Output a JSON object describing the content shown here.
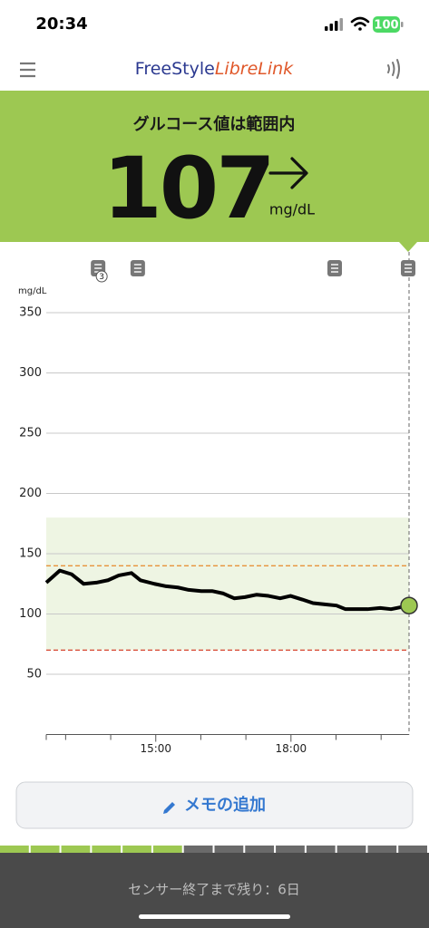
{
  "status": {
    "time": "20:34",
    "battery": "100"
  },
  "header": {
    "brand_1": "FreeStyle",
    "brand_2": "LibreLink"
  },
  "banner": {
    "status": "グルコース値は範囲内",
    "value": "107",
    "unit": "mg/dL"
  },
  "chart_data": {
    "type": "line",
    "y_label": "mg/dL",
    "x": [
      12.57,
      12.87,
      13.13,
      13.4,
      13.68,
      13.94,
      14.18,
      14.46,
      14.66,
      14.97,
      15.23,
      15.49,
      15.73,
      16.01,
      16.25,
      16.5,
      16.74,
      16.98,
      17.24,
      17.5,
      17.76,
      17.99,
      18.25,
      18.49,
      18.75,
      19.01,
      19.21,
      19.48,
      19.7,
      19.98,
      20.22,
      20.62
    ],
    "series": [
      {
        "color": "#000000",
        "values": [
          126,
          136,
          133,
          125,
          126,
          128,
          132,
          134,
          128,
          125,
          123,
          122,
          120,
          119,
          119,
          117,
          113,
          114,
          116,
          115,
          113,
          115,
          112,
          109,
          108,
          107,
          104,
          104,
          104,
          105,
          104,
          107
        ]
      }
    ],
    "xlim": [
      12.57,
      20.62
    ],
    "ylim": [
      0,
      375
    ],
    "xticks": [
      {
        "value": 15,
        "label": "15:00"
      },
      {
        "value": 18,
        "label": "18:00"
      }
    ],
    "x_minor_ticks": [
      13,
      14,
      16,
      17,
      19,
      20
    ],
    "yticks": [
      50,
      100,
      150,
      200,
      250,
      300,
      350
    ],
    "grid": true,
    "target_range": [
      70,
      180
    ],
    "range_color": "#eef5e3",
    "high_line": {
      "value": 140,
      "color": "#e8923a"
    },
    "low_line": {
      "value": 70,
      "color": "#d6452f"
    },
    "current_color": "#9dc852",
    "notes": [
      {
        "x": 13.72,
        "count": "3"
      },
      {
        "x": 14.6
      },
      {
        "x": 18.97
      },
      {
        "x": 20.6
      }
    ]
  },
  "memo_button": "メモの追加",
  "sensor_bar": {
    "segments": 14,
    "filled": 6
  },
  "footer": {
    "text": "センサー終了まで残り：6日"
  }
}
